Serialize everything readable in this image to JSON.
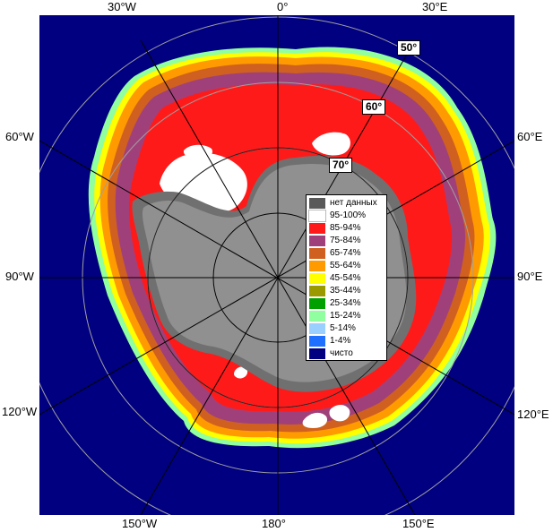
{
  "map": {
    "longitude_labels": {
      "top_left": "30°W",
      "top_center": "0°",
      "top_right": "30°E",
      "left_upper": "60°W",
      "right_upper": "60°E",
      "left_middle": "90°W",
      "right_middle": "90°E",
      "left_lower": "120°W",
      "right_lower": "120°E",
      "bottom_left": "150°W",
      "bottom_center": "180°",
      "bottom_right": "150°E"
    },
    "latitude_labels": {
      "lat50": "50°",
      "lat60": "60°",
      "lat70": "70°"
    },
    "legend": [
      {
        "label": "нет данных",
        "color": "#595959"
      },
      {
        "label": "95-100%",
        "color": "#ffffff"
      },
      {
        "label": "85-94%",
        "color": "#ff1a1a"
      },
      {
        "label": "75-84%",
        "color": "#a0407a"
      },
      {
        "label": "65-74%",
        "color": "#d06020"
      },
      {
        "label": "55-64%",
        "color": "#ff9a00"
      },
      {
        "label": "45-54%",
        "color": "#ffff00"
      },
      {
        "label": "35-44%",
        "color": "#9a9a00"
      },
      {
        "label": "25-34%",
        "color": "#00a000"
      },
      {
        "label": "15-24%",
        "color": "#90ffa0"
      },
      {
        "label": "5-14%",
        "color": "#9ad0ff"
      },
      {
        "label": "1-4%",
        "color": "#2070ff"
      },
      {
        "label": "чисто",
        "color": "#000080"
      }
    ],
    "colors": {
      "open_water": "#000080",
      "land": "#909090",
      "land_no_data": "#707070",
      "graticule": "#a0a0a0"
    }
  }
}
